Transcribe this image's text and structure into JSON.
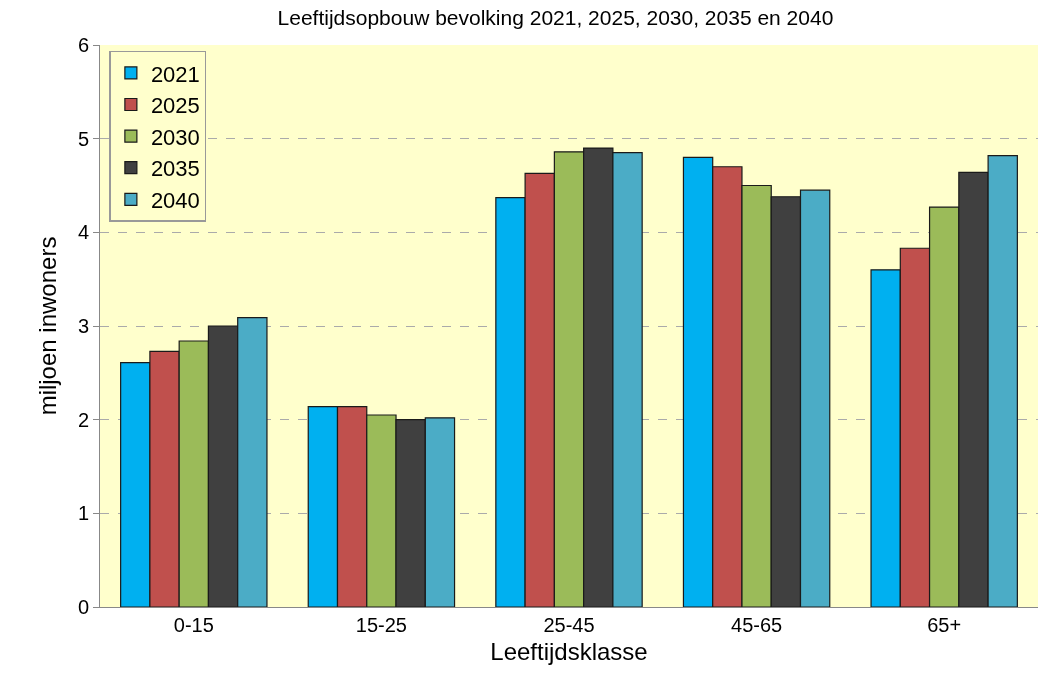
{
  "chart_data": {
    "type": "bar",
    "title": "Leeftijdsopbouw bevolking 2021, 2025, 2030, 2035 en 2040",
    "xlabel": "Leeftijdsklasse",
    "ylabel": "miljoen inwoners",
    "categories": [
      "0-15",
      "15-25",
      "25-45",
      "45-65",
      "65+"
    ],
    "series": [
      {
        "name": "2021",
        "color": "#00b0f0",
        "values": [
          2.61,
          2.14,
          4.37,
          4.8,
          3.6
        ]
      },
      {
        "name": "2025",
        "color": "#c0504d",
        "values": [
          2.73,
          2.14,
          4.63,
          4.7,
          3.83
        ]
      },
      {
        "name": "2030",
        "color": "#9bbb59",
        "values": [
          2.84,
          2.05,
          4.86,
          4.5,
          4.27
        ]
      },
      {
        "name": "2035",
        "color": "#404040",
        "values": [
          3.0,
          2.0,
          4.9,
          4.38,
          4.64
        ]
      },
      {
        "name": "2040",
        "color": "#4bacc6",
        "values": [
          3.09,
          2.02,
          4.85,
          4.45,
          4.82
        ]
      }
    ],
    "ylim": [
      0,
      6
    ],
    "yticks": [
      0,
      1,
      2,
      3,
      4,
      5,
      6
    ],
    "grid": "y",
    "legend": "top left"
  }
}
